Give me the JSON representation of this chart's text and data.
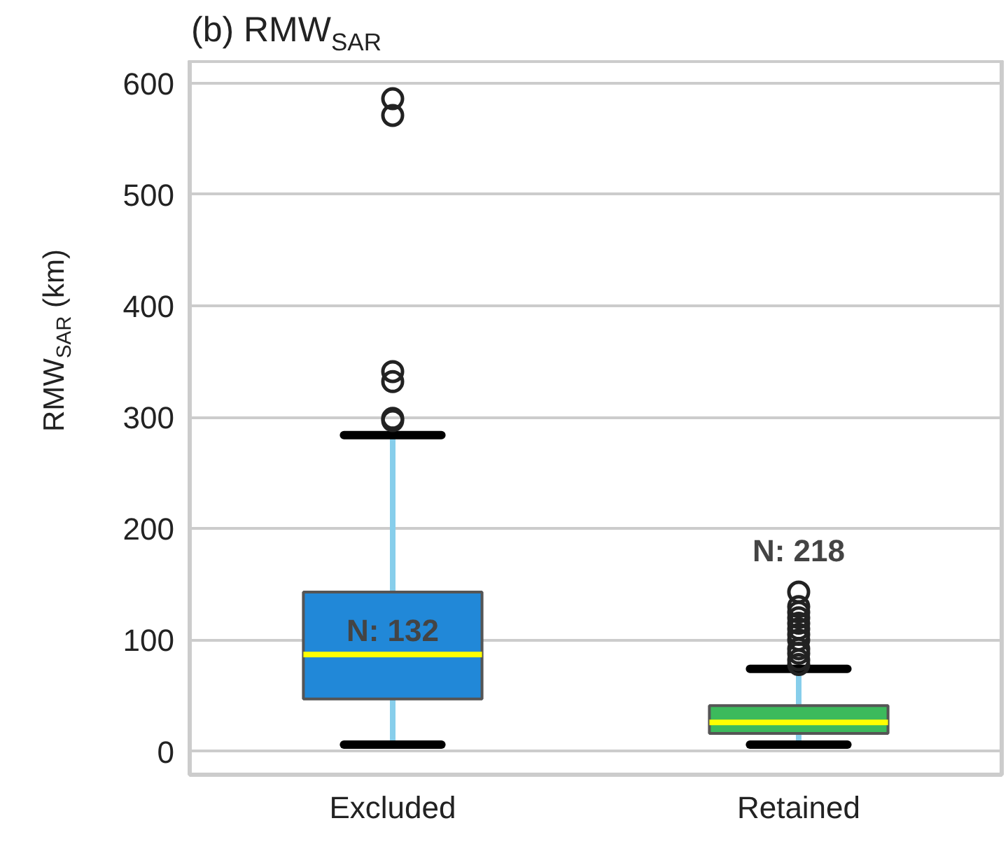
{
  "chart_data": {
    "type": "box",
    "title": "(b) RMW$_{SAR}$",
    "ylabel": "RMW$_{SAR}$ (km)",
    "categories": [
      "Excluded",
      "Retained"
    ],
    "series": [
      {
        "colors": [
          "#2188d8",
          "#3cba5c"
        ],
        "boxes": [
          {
            "low": 6,
            "q1": 47,
            "median": 87,
            "q3": 143,
            "high": 284,
            "outliers": [
              297,
              299,
              332,
              341,
              571,
              586
            ]
          },
          {
            "low": 6,
            "q1": 16,
            "median": 26,
            "q3": 41,
            "high": 74,
            "outliers": [
              78,
              82,
              88,
              92,
              100,
              105,
              110,
              115,
              120,
              125,
              130,
              143
            ]
          }
        ]
      }
    ],
    "annotations": [
      "N: 132",
      "N: 218"
    ],
    "ylim": [
      -21,
      620
    ],
    "yticks": [
      0,
      100,
      200,
      300,
      400,
      500,
      600
    ],
    "grid": "y"
  }
}
